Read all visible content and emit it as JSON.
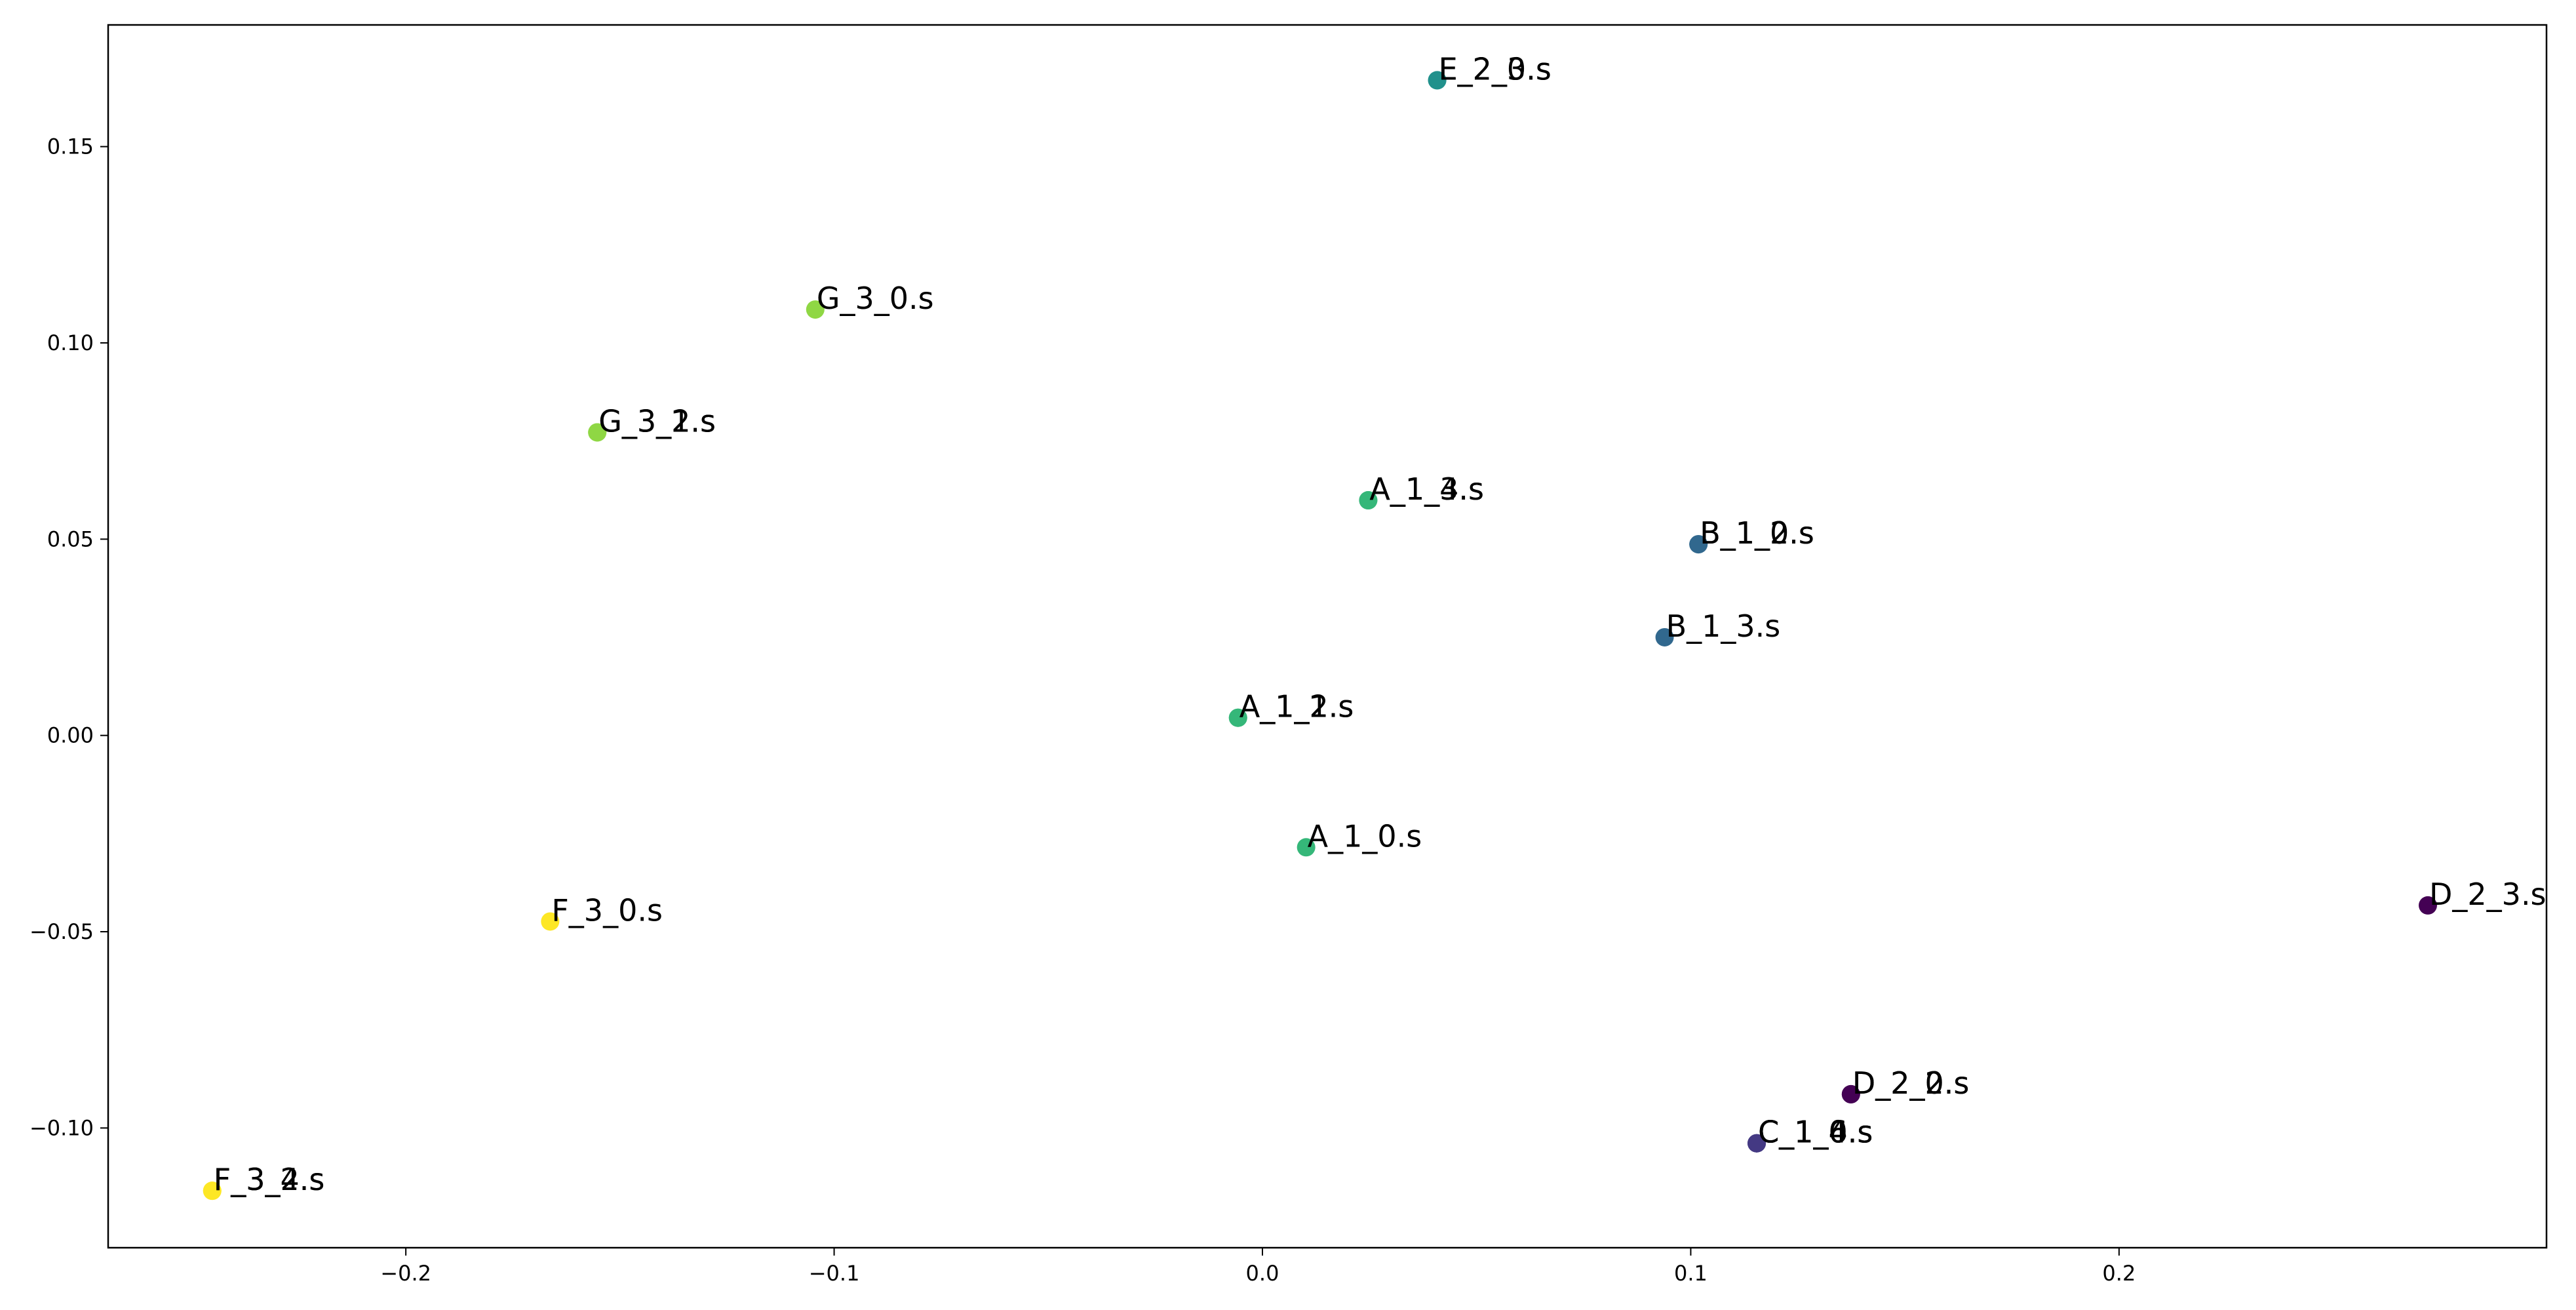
{
  "chart_data": {
    "type": "scatter",
    "title": "",
    "xlabel": "",
    "ylabel": "",
    "xlim": [
      -0.2695,
      0.2998
    ],
    "ylim": [
      -0.1305,
      0.181
    ],
    "grid": false,
    "legend": "none",
    "x_ticks": [
      {
        "value": -0.2,
        "label": "−0.2"
      },
      {
        "value": -0.1,
        "label": "−0.1"
      },
      {
        "value": 0.0,
        "label": "0.0"
      },
      {
        "value": 0.1,
        "label": "0.1"
      },
      {
        "value": 0.2,
        "label": "0.2"
      }
    ],
    "y_ticks": [
      {
        "value": -0.1,
        "label": "−0.10"
      },
      {
        "value": -0.05,
        "label": "−0.05"
      },
      {
        "value": 0.0,
        "label": "0.00"
      },
      {
        "value": 0.05,
        "label": "0.05"
      },
      {
        "value": 0.1,
        "label": "0.10"
      },
      {
        "value": 0.15,
        "label": "0.15"
      }
    ],
    "colors": {
      "A": "#35b779",
      "B": "#31688e",
      "C": "#443983",
      "D": "#440154",
      "E": "#21918c",
      "F": "#fde725",
      "G": "#8fd744"
    },
    "points": [
      {
        "label": "A_1_0.s",
        "group": "A",
        "x": 0.0102,
        "y": -0.0285
      },
      {
        "label": "A_1_1.s",
        "group": "A",
        "x": -0.0057,
        "y": 0.0045
      },
      {
        "label": "A_1_2.s",
        "group": "A",
        "x": -0.0057,
        "y": 0.0045
      },
      {
        "label": "A_1_3.s",
        "group": "A",
        "x": 0.0247,
        "y": 0.0599
      },
      {
        "label": "A_1_4.s",
        "group": "A",
        "x": 0.0247,
        "y": 0.0599
      },
      {
        "label": "B_1_0.s",
        "group": "B",
        "x": 0.1018,
        "y": 0.0487
      },
      {
        "label": "B_1_2.s",
        "group": "B",
        "x": 0.1018,
        "y": 0.0487
      },
      {
        "label": "B_1_3.s",
        "group": "B",
        "x": 0.0939,
        "y": 0.025
      },
      {
        "label": "C_1_0.s",
        "group": "C",
        "x": 0.1154,
        "y": -0.1039
      },
      {
        "label": "C_1_4.s",
        "group": "C",
        "x": 0.1154,
        "y": -0.1039
      },
      {
        "label": "C_1_6.s",
        "group": "C",
        "x": 0.1154,
        "y": -0.1039
      },
      {
        "label": "D_2_0.s",
        "group": "D",
        "x": 0.1374,
        "y": -0.0914
      },
      {
        "label": "D_2_2.s",
        "group": "D",
        "x": 0.1374,
        "y": -0.0914
      },
      {
        "label": "D_2_3.s",
        "group": "D",
        "x": 0.2721,
        "y": -0.0433
      },
      {
        "label": "E_2_0.s",
        "group": "E",
        "x": 0.0408,
        "y": 0.1669
      },
      {
        "label": "E_2_3.s",
        "group": "E",
        "x": 0.0408,
        "y": 0.1669
      },
      {
        "label": "F_3_0.s",
        "group": "F",
        "x": -0.1663,
        "y": -0.0474
      },
      {
        "label": "F_3_2.s",
        "group": "F",
        "x": -0.2452,
        "y": -0.116
      },
      {
        "label": "F_3_4.s",
        "group": "F",
        "x": -0.2452,
        "y": -0.116
      },
      {
        "label": "G_3_0.s",
        "group": "G",
        "x": -0.1044,
        "y": 0.1085
      },
      {
        "label": "G_3_1.s",
        "group": "G",
        "x": -0.1553,
        "y": 0.0772
      },
      {
        "label": "G_3_2.s",
        "group": "G",
        "x": -0.1553,
        "y": 0.0772
      }
    ]
  }
}
